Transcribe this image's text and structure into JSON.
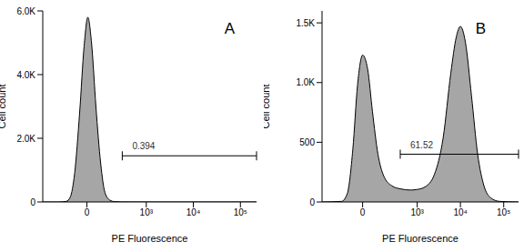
{
  "chart_data": [
    {
      "type": "area",
      "title": "A",
      "x_label": "PE Fluorescence",
      "y_label": "Cell count",
      "color": "#a6a6a6",
      "log": "x",
      "x": [
        -470,
        -200,
        -130,
        -100,
        -70,
        -40,
        -15,
        5,
        25,
        50,
        80,
        110,
        150,
        200,
        300,
        1000,
        10000,
        220000
      ],
      "values": [
        0,
        0,
        20,
        150,
        900,
        2800,
        4900,
        5800,
        5000,
        3000,
        1200,
        300,
        60,
        10,
        2,
        0,
        0,
        0
      ],
      "xlim": [
        -470,
        220000
      ],
      "xticks": [
        0,
        {
          "value": 1000,
          "label": "10³"
        },
        {
          "value": 10000,
          "label": "10⁴"
        },
        {
          "value": 100000,
          "label": "10⁵"
        }
      ],
      "ylim": [
        0,
        6000
      ],
      "yticks": [
        0,
        {
          "value": 2000,
          "label": "2.0K"
        },
        {
          "value": 4000,
          "label": "4.0K"
        },
        {
          "value": 6000,
          "label": "6.0K"
        }
      ],
      "gate": {
        "label": "0.394",
        "x": [
          300,
          220000
        ],
        "y": 1450
      }
    },
    {
      "type": "area",
      "title": "B",
      "x_label": "PE Fluorescence",
      "y_label": "Cell count",
      "color": "#a6a6a6",
      "log": "x",
      "x": [
        -470,
        -150,
        -100,
        -60,
        -30,
        0,
        30,
        60,
        100,
        150,
        250,
        400,
        700,
        1000,
        1500,
        2500,
        4000,
        6000,
        8000,
        10000,
        13000,
        18000,
        25000,
        35000,
        50000,
        80000,
        220000
      ],
      "values": [
        0,
        5,
        70,
        440,
        980,
        1230,
        1110,
        760,
        400,
        220,
        135,
        110,
        100,
        105,
        125,
        230,
        540,
        1080,
        1380,
        1470,
        1340,
        890,
        400,
        135,
        35,
        5,
        0
      ],
      "xlim": [
        -470,
        220000
      ],
      "xticks": [
        0,
        {
          "value": 1000,
          "label": "10³"
        },
        {
          "value": 10000,
          "label": "10⁴"
        },
        {
          "value": 100000,
          "label": "10⁵"
        }
      ],
      "ylim": [
        0,
        1600
      ],
      "yticks": [
        0,
        500,
        {
          "value": 1000,
          "label": "1.0K"
        },
        {
          "value": 1500,
          "label": "1.5K"
        }
      ],
      "gate": {
        "label": "61.52",
        "x": [
          400,
          220000
        ],
        "y": 400
      }
    }
  ]
}
